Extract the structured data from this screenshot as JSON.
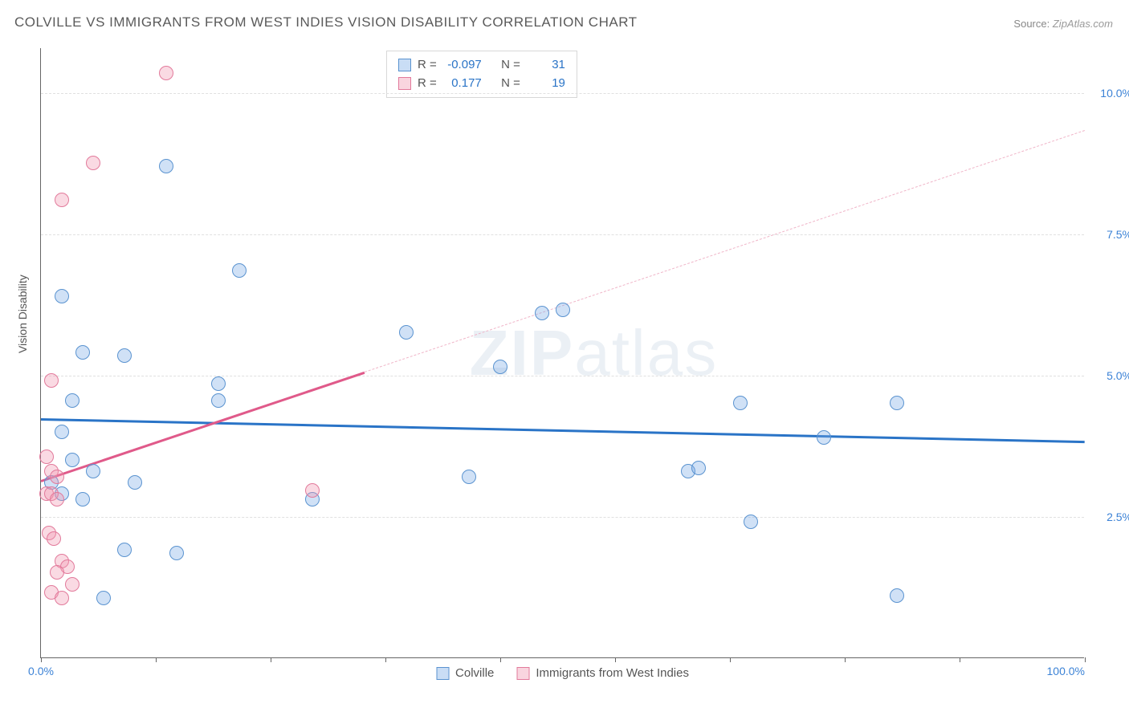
{
  "title": "COLVILLE VS IMMIGRANTS FROM WEST INDIES VISION DISABILITY CORRELATION CHART",
  "source_label": "Source:",
  "source_value": "ZipAtlas.com",
  "ylabel": "Vision Disability",
  "watermark": "ZIPatlas",
  "chart": {
    "type": "scatter",
    "xlim": [
      0,
      100
    ],
    "ylim": [
      0,
      10.8
    ],
    "x_tick_label_min": "0.0%",
    "x_tick_label_max": "100.0%",
    "y_ticks": [
      2.5,
      5.0,
      7.5,
      10.0
    ],
    "y_tick_labels": [
      "2.5%",
      "5.0%",
      "7.5%",
      "10.0%"
    ],
    "x_minor_ticks": [
      0,
      11,
      22,
      33,
      44,
      55,
      66,
      77,
      88,
      100
    ],
    "grid_color": "#e0e0e0",
    "background_color": "#ffffff",
    "axis_color": "#666666",
    "tick_label_color": "#3b82d6",
    "marker_radius": 9,
    "series": [
      {
        "name": "Colville",
        "color_fill": "rgba(120,170,230,0.35)",
        "color_stroke": "#5a93d0",
        "trend_color": "#2a74c7",
        "R": "-0.097",
        "N": "31",
        "trend": {
          "x1": 0,
          "y1": 4.25,
          "x2": 100,
          "y2": 3.85,
          "solid_until_x": 100
        },
        "points": [
          [
            2,
            6.4
          ],
          [
            4,
            5.4
          ],
          [
            8,
            5.35
          ],
          [
            12,
            8.7
          ],
          [
            3,
            4.55
          ],
          [
            2,
            4.0
          ],
          [
            3,
            3.5
          ],
          [
            1,
            3.1
          ],
          [
            2,
            2.9
          ],
          [
            5,
            3.3
          ],
          [
            4,
            2.8
          ],
          [
            9,
            3.1
          ],
          [
            17,
            4.85
          ],
          [
            17,
            4.55
          ],
          [
            19,
            6.85
          ],
          [
            8,
            1.9
          ],
          [
            13,
            1.85
          ],
          [
            6,
            1.05
          ],
          [
            26,
            2.8
          ],
          [
            35,
            5.75
          ],
          [
            44,
            5.15
          ],
          [
            41,
            3.2
          ],
          [
            48,
            6.1
          ],
          [
            50,
            6.15
          ],
          [
            62,
            3.3
          ],
          [
            63,
            3.35
          ],
          [
            67,
            4.5
          ],
          [
            68,
            2.4
          ],
          [
            75,
            3.9
          ],
          [
            82,
            4.5
          ],
          [
            82,
            1.1
          ]
        ]
      },
      {
        "name": "Immigrants from West Indies",
        "color_fill": "rgba(240,150,175,0.35)",
        "color_stroke": "#e27a9b",
        "trend_color": "#e05a8a",
        "R": "0.177",
        "N": "19",
        "trend": {
          "x1": 0,
          "y1": 3.15,
          "x2": 100,
          "y2": 9.35,
          "solid_until_x": 31
        },
        "points": [
          [
            12,
            10.35
          ],
          [
            5,
            8.75
          ],
          [
            2,
            8.1
          ],
          [
            1,
            4.9
          ],
          [
            0.5,
            3.55
          ],
          [
            1,
            3.3
          ],
          [
            1.5,
            3.2
          ],
          [
            0.5,
            2.9
          ],
          [
            1,
            2.9
          ],
          [
            1.5,
            2.8
          ],
          [
            0.8,
            2.2
          ],
          [
            1.2,
            2.1
          ],
          [
            2,
            1.7
          ],
          [
            2.5,
            1.6
          ],
          [
            1.5,
            1.5
          ],
          [
            3,
            1.3
          ],
          [
            1,
            1.15
          ],
          [
            2,
            1.05
          ],
          [
            26,
            2.95
          ]
        ]
      }
    ]
  },
  "legend": {
    "series1": "Colville",
    "series2": "Immigrants from West Indies"
  },
  "stats_box": {
    "r_label": "R =",
    "n_label": "N ="
  }
}
